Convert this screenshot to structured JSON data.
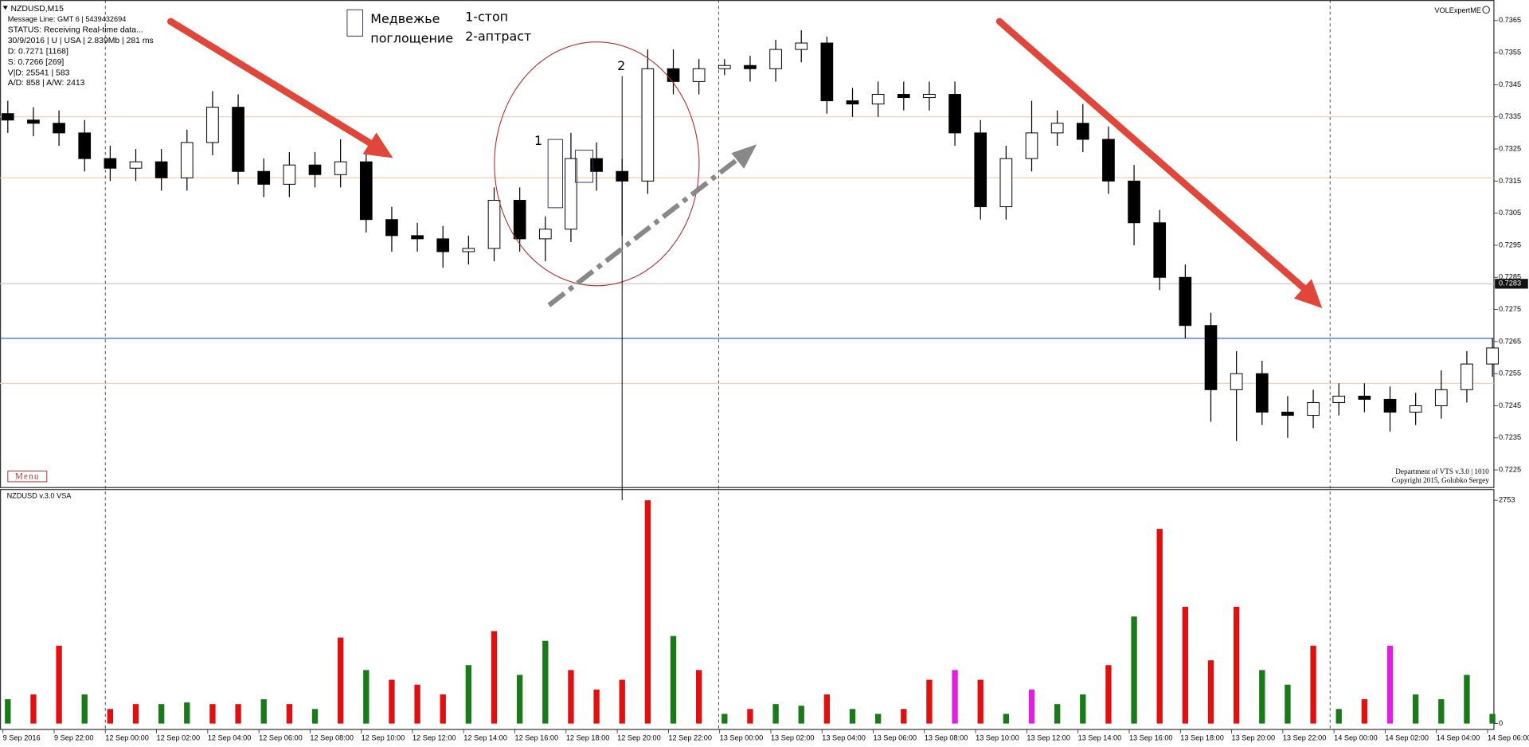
{
  "chart_data": [
    {
      "type": "candlestick",
      "title": "NZDUSD,M15",
      "info_lines": [
        "Message Line: GMT 6 | 5439432694",
        "STATUS:  Receiving Real-time data...",
        "30/9/2016 | U | USA | 2.839Mb | 281 ms",
        "D: 0.7271  [1168]",
        "S: 0.7266  [269]",
        "V|D: 25541 | 583",
        "A/D: 858 | A/W: 2413"
      ],
      "watermark": "VOLExpertME",
      "menu": "Menu",
      "footer": [
        "Department of VTS  v.3.0 | 1010",
        "Copyright 2015, Golubko Sergey"
      ],
      "annotations": {
        "legend_lines": [
          "Медвежье",
          "поглощение"
        ],
        "notes": [
          "1-стоп",
          "2-аптраст"
        ],
        "marker_1": "1",
        "marker_2": "2"
      },
      "categories": [
        "9 Sep 2016",
        null,
        "9 Sep 22:00",
        null,
        "12 Sep 00:00",
        null,
        "12 Sep 02:00",
        null,
        "12 Sep 04:00",
        null,
        "12 Sep 06:00",
        null,
        "12 Sep 08:00",
        null,
        "12 Sep 10:00",
        null,
        "12 Sep 12:00",
        null,
        "12 Sep 14:00",
        null,
        "12 Sep 16:00",
        null,
        "12 Sep 18:00",
        null,
        "12 Sep 20:00",
        null,
        "12 Sep 22:00",
        null,
        "13 Sep 00:00",
        null,
        "13 Sep 02:00",
        null,
        "13 Sep 04:00",
        null,
        "13 Sep 06:00",
        null,
        "13 Sep 08:00",
        null,
        "13 Sep 10:00",
        null,
        "13 Sep 12:00",
        null,
        "13 Sep 14:00",
        null,
        "13 Sep 16:00",
        null,
        "13 Sep 18:00",
        null,
        "13 Sep 20:00",
        null,
        "13 Sep 22:00",
        null,
        "14 Sep 00:00",
        null,
        "14 Sep 02:00",
        null,
        "14 Sep 04:00",
        null,
        "14 Sep 06:00"
      ],
      "open": [
        0.7336,
        0.7334,
        0.7333,
        0.733,
        0.7322,
        0.7319,
        0.7321,
        0.7316,
        0.7327,
        0.7338,
        0.7318,
        0.7314,
        0.732,
        0.7317,
        0.7321,
        0.7303,
        0.7298,
        0.7297,
        0.7293,
        0.7294,
        0.7309,
        0.7297,
        0.73,
        0.7322,
        0.7318,
        0.7315,
        0.735,
        0.7346,
        0.735,
        0.7351,
        0.735,
        0.7356,
        0.7358,
        0.734,
        0.7339,
        0.7342,
        0.7341,
        0.7342,
        0.733,
        0.7307,
        0.7322,
        0.733,
        0.7333,
        0.7328,
        0.7315,
        0.7302,
        0.7285,
        0.727,
        0.725,
        0.7255,
        0.7243,
        0.7242,
        0.7246,
        0.7248,
        0.7247,
        0.7243,
        0.7245,
        0.725,
        0.7258
      ],
      "high": [
        0.734,
        0.7338,
        0.7337,
        0.7334,
        0.7326,
        0.7325,
        0.7325,
        0.7331,
        0.7343,
        0.7342,
        0.7322,
        0.7324,
        0.7324,
        0.7328,
        0.7325,
        0.7307,
        0.7302,
        0.7301,
        0.7298,
        0.7313,
        0.7313,
        0.7304,
        0.733,
        0.7327,
        0.7322,
        0.7356,
        0.7356,
        0.7353,
        0.7353,
        0.7354,
        0.7359,
        0.7362,
        0.736,
        0.7344,
        0.7346,
        0.7346,
        0.7346,
        0.7346,
        0.7334,
        0.7326,
        0.734,
        0.7337,
        0.7339,
        0.7332,
        0.732,
        0.7306,
        0.7289,
        0.7274,
        0.7262,
        0.7259,
        0.7248,
        0.725,
        0.7252,
        0.7252,
        0.7251,
        0.7249,
        0.7256,
        0.7262,
        0.7266
      ],
      "low": [
        0.733,
        0.7329,
        0.7326,
        0.7318,
        0.7315,
        0.7315,
        0.7312,
        0.7312,
        0.7323,
        0.7314,
        0.731,
        0.731,
        0.7313,
        0.7313,
        0.7299,
        0.7293,
        0.7293,
        0.7288,
        0.7289,
        0.729,
        0.7293,
        0.729,
        0.7296,
        0.7312,
        0.7298,
        0.7311,
        0.7342,
        0.7342,
        0.7348,
        0.7346,
        0.7346,
        0.7352,
        0.7336,
        0.7335,
        0.7335,
        0.7337,
        0.7337,
        0.7326,
        0.7303,
        0.7303,
        0.7318,
        0.7326,
        0.7324,
        0.7311,
        0.7295,
        0.7281,
        0.7266,
        0.724,
        0.7234,
        0.7239,
        0.7235,
        0.7238,
        0.7242,
        0.7243,
        0.7237,
        0.7239,
        0.7241,
        0.7246,
        0.7254
      ],
      "close": [
        0.7334,
        0.7333,
        0.733,
        0.7322,
        0.7319,
        0.7321,
        0.7316,
        0.7327,
        0.7338,
        0.7318,
        0.7314,
        0.732,
        0.7317,
        0.7321,
        0.7303,
        0.7298,
        0.7297,
        0.7293,
        0.7294,
        0.7309,
        0.7297,
        0.73,
        0.7322,
        0.7318,
        0.7315,
        0.735,
        0.7346,
        0.735,
        0.7351,
        0.735,
        0.7356,
        0.7358,
        0.734,
        0.7339,
        0.7342,
        0.7341,
        0.7342,
        0.733,
        0.7307,
        0.7322,
        0.733,
        0.7333,
        0.7328,
        0.7315,
        0.7302,
        0.7285,
        0.727,
        0.725,
        0.7255,
        0.7243,
        0.7242,
        0.7246,
        0.7248,
        0.7247,
        0.7243,
        0.7245,
        0.725,
        0.7258,
        0.7263
      ],
      "up_color": "#ffffff",
      "down_color": "#000000",
      "ylim": [
        0.72195,
        0.73714
      ],
      "yticks": [
        0.7225,
        0.7235,
        0.7245,
        0.7255,
        0.7265,
        0.7275,
        0.7285,
        0.7295,
        0.7305,
        0.7315,
        0.7325,
        0.7335,
        0.7345,
        0.7355,
        0.7365
      ],
      "grid": false,
      "current_price": 0.7283,
      "levels": [
        {
          "value": 0.7266,
          "color": "#2b4fd0"
        },
        {
          "value": 0.7283,
          "color": "#c8c8c8"
        },
        {
          "value": 0.7335,
          "color": "#f5c9a8"
        },
        {
          "value": 0.7316,
          "color": "#f5c9a8"
        },
        {
          "value": 0.7252,
          "color": "#f5c9a8"
        }
      ]
    },
    {
      "type": "bar",
      "title": "NZDUSD  v.3.0 VSA",
      "values": [
        300,
        360,
        960,
        360,
        180,
        240,
        240,
        260,
        240,
        240,
        300,
        240,
        180,
        1060,
        660,
        540,
        480,
        360,
        720,
        1140,
        600,
        1020,
        660,
        420,
        540,
        2753,
        1080,
        660,
        120,
        180,
        240,
        220,
        360,
        180,
        120,
        180,
        540,
        660,
        540,
        120,
        420,
        240,
        360,
        720,
        1320,
        2400,
        1440,
        780,
        1440,
        660,
        480,
        960,
        180,
        300,
        960,
        360,
        300,
        600,
        120
      ],
      "colors": [
        "#1a7a1a",
        "#e01010",
        "#e01010",
        "#1a7a1a",
        "#e01010",
        "#e01010",
        "#1a7a1a",
        "#1a7a1a",
        "#e01010",
        "#e01010",
        "#1a7a1a",
        "#e01010",
        "#1a7a1a",
        "#e01010",
        "#1a7a1a",
        "#e01010",
        "#e01010",
        "#e01010",
        "#1a7a1a",
        "#e01010",
        "#1a7a1a",
        "#1a7a1a",
        "#e01010",
        "#e01010",
        "#e01010",
        "#e01010",
        "#1a7a1a",
        "#e01010",
        "#1a7a1a",
        "#e01010",
        "#1a7a1a",
        "#1a7a1a",
        "#e01010",
        "#1a7a1a",
        "#1a7a1a",
        "#e01010",
        "#e01010",
        "#e020e0",
        "#e01010",
        "#1a7a1a",
        "#e020e0",
        "#1a7a1a",
        "#1a7a1a",
        "#e01010",
        "#1a7a1a",
        "#e01010",
        "#e01010",
        "#e01010",
        "#e01010",
        "#1a7a1a",
        "#1a7a1a",
        "#e01010",
        "#1a7a1a",
        "#e01010",
        "#e020e0",
        "#1a7a1a",
        "#1a7a1a",
        "#1a7a1a",
        "#1a7a1a"
      ],
      "ylim": [
        0,
        2753
      ],
      "yticks": [
        0,
        2753
      ]
    }
  ]
}
